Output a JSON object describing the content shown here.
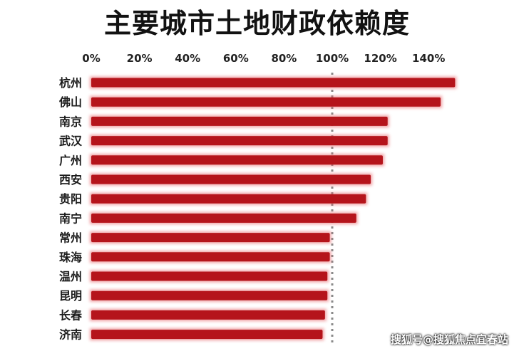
{
  "page": {
    "title": "主要城市土地财政依赖度",
    "watermark": "搜狐号@搜狐焦点宜春站"
  },
  "colors": {
    "bar": "#b5141b",
    "bar_glow": "#e4545a",
    "reference_line": "#8a8a8a"
  },
  "chart_data": {
    "type": "bar",
    "orientation": "horizontal",
    "title": "主要城市土地财政依赖度",
    "xlabel": "",
    "ylabel": "",
    "xlim": [
      0,
      155
    ],
    "ticks": [
      0,
      20,
      40,
      60,
      80,
      100,
      120,
      140
    ],
    "tick_labels": [
      "0%",
      "20%",
      "40%",
      "60%",
      "80%",
      "100%",
      "120%",
      "140%"
    ],
    "reference_line": 100,
    "grid": false,
    "legend": "none",
    "categories": [
      "杭州",
      "佛山",
      "南京",
      "武汉",
      "广州",
      "西安",
      "贵阳",
      "南宁",
      "常州",
      "珠海",
      "温州",
      "昆明",
      "长春",
      "济南"
    ],
    "values": [
      151,
      145,
      123,
      123,
      121,
      116,
      114,
      110,
      99,
      99,
      98,
      98,
      97,
      96
    ]
  }
}
